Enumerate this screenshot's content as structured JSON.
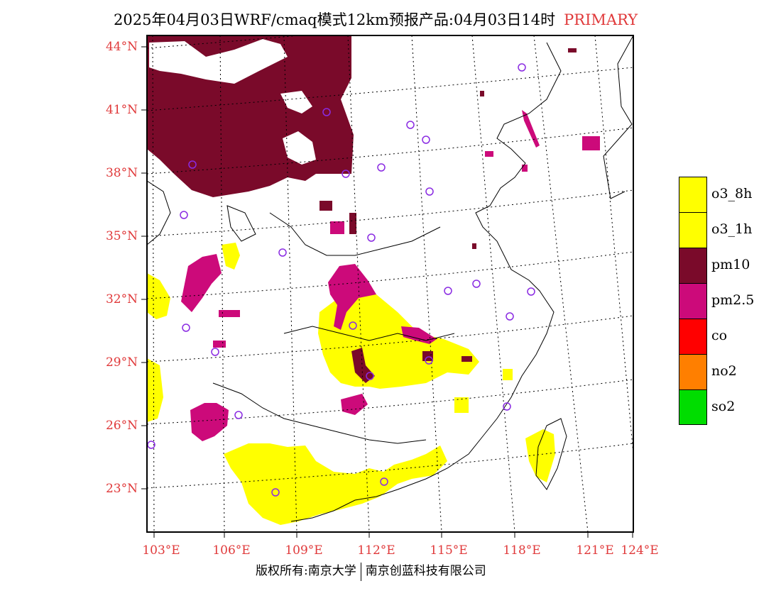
{
  "title": {
    "main": "2025年04月03日WRF/cmaq模式12km预报产品:04月03日14时",
    "tag": "PRIMARY"
  },
  "map": {
    "lat_labels": [
      "44°N",
      "41°N",
      "38°N",
      "35°N",
      "32°N",
      "29°N",
      "26°N",
      "23°N"
    ],
    "lon_labels": [
      "103°E",
      "106°E",
      "109°E",
      "112°E",
      "115°E",
      "118°E",
      "121°E",
      "124°E"
    ],
    "colors": {
      "o3_8h": "#ffff00",
      "o3_1h": "#ffff00",
      "pm10": "#7a0a2a",
      "pm2_5": "#cc0a7a",
      "co": "#ff0000",
      "no2": "#ff7f00",
      "so2": "#00dd00",
      "station_marker": "#8a2be2",
      "axis_label": "#e0393a"
    }
  },
  "legend": {
    "items": [
      {
        "label": "o3_8h",
        "color": "#ffff00"
      },
      {
        "label": "o3_1h",
        "color": "#ffff00"
      },
      {
        "label": "pm10",
        "color": "#7a0a2a"
      },
      {
        "label": "pm2.5",
        "color": "#cc0a7a"
      },
      {
        "label": "co",
        "color": "#ff0000"
      },
      {
        "label": "no2",
        "color": "#ff7f00"
      },
      {
        "label": "so2",
        "color": "#00dd00"
      }
    ]
  },
  "footer": {
    "left": "版权所有:南京大学",
    "right": "南京创蓝科技有限公司"
  }
}
